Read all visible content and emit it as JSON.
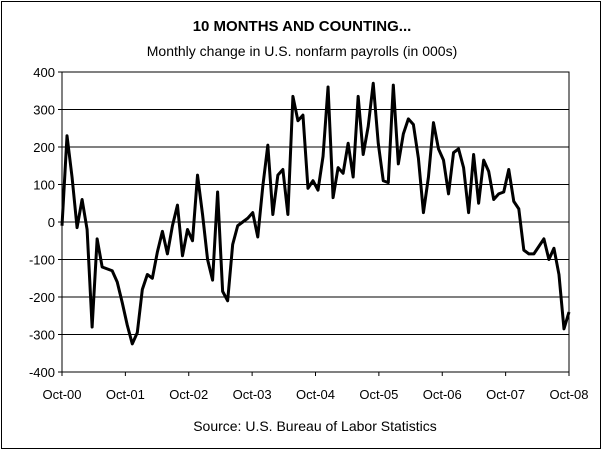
{
  "chart_data": {
    "type": "line",
    "title": "10 MONTHS AND COUNTING...",
    "subtitle": "Monthly change in U.S. nonfarm payrolls (in 000s)",
    "source": "Source: U.S. Bureau of Labor Statistics",
    "xlabel": "",
    "ylabel": "",
    "ylim": [
      -400,
      400
    ],
    "yticks": [
      400,
      300,
      200,
      100,
      0,
      -100,
      -200,
      -300,
      -400
    ],
    "ytick_labels": [
      "400",
      "300",
      "200",
      "100",
      "0",
      "-100",
      "-200",
      "-300",
      "-400"
    ],
    "xtick_labels": [
      "Oct-00",
      "Oct-01",
      "Oct-02",
      "Oct-03",
      "Oct-04",
      "Oct-05",
      "Oct-06",
      "Oct-07",
      "Oct-08"
    ],
    "grid": true,
    "legend": "none",
    "line_color": "#000000",
    "series": [
      {
        "values": [
          -10,
          230,
          120,
          -15,
          60,
          -20,
          -280,
          -45,
          -120,
          -125,
          -130,
          -160,
          -215,
          -275,
          -325,
          -295,
          -180,
          -140,
          -150,
          -80,
          -25,
          -85,
          -10,
          45,
          -90,
          -20,
          -50,
          125,
          20,
          -100,
          -155,
          80,
          -185,
          -210,
          -60,
          -10,
          0,
          10,
          25,
          -40,
          95,
          205,
          20,
          125,
          140,
          20,
          335,
          270,
          285,
          90,
          110,
          85,
          175,
          360,
          65,
          145,
          130,
          210,
          120,
          335,
          180,
          255,
          370,
          210,
          110,
          105,
          365,
          155,
          235,
          275,
          260,
          170,
          25,
          120,
          265,
          195,
          165,
          75,
          185,
          195,
          145,
          25,
          180,
          50,
          165,
          135,
          60,
          75,
          80,
          140,
          55,
          35,
          -75,
          -85,
          -85,
          -65,
          -45,
          -100,
          -70,
          -140,
          -285,
          -240
        ]
      }
    ]
  }
}
